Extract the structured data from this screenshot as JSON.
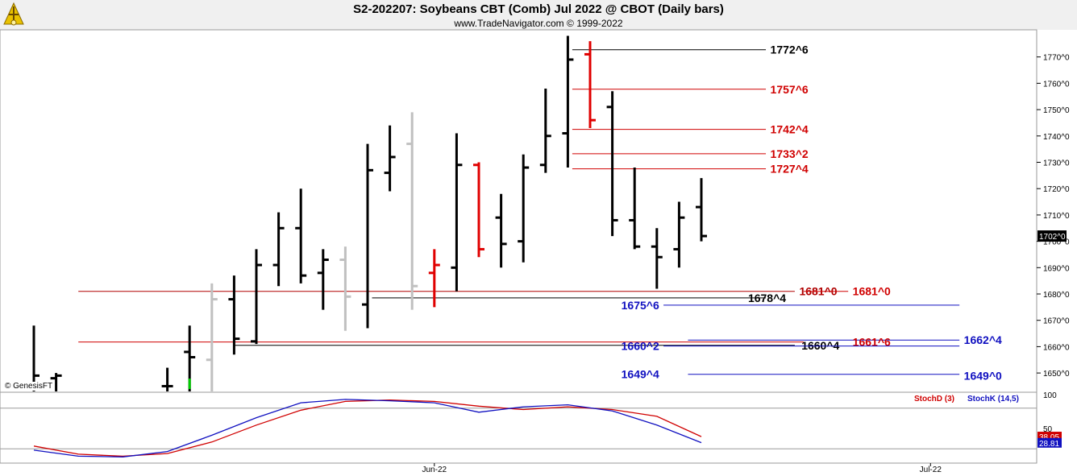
{
  "header": {
    "title": "S2-202207:  Soybeans CBT (Comb) Jul 2022 @ CBOT  (Daily bars)",
    "subtitle": "www.TradeNavigator.com © 1999-2022",
    "copyright": "© GenesisFT"
  },
  "chart_data": [
    {
      "type": "ohlc",
      "title": "S2-202207:  Soybeans CBT (Comb) Jul 2022 @ CBOT  (Daily bars)",
      "y_range": [
        1643,
        1780
      ],
      "y_ticks": [
        1650,
        1660,
        1670,
        1680,
        1690,
        1700,
        1710,
        1720,
        1730,
        1740,
        1750,
        1760,
        1770
      ],
      "y_tick_labels": [
        "1650^0",
        "1660^0",
        "1670^0",
        "1680^0",
        "1690^0",
        "1700^0",
        "1710^0",
        "1720^0",
        "1730^0",
        "1740^0",
        "1750^0",
        "1760^0",
        "1770^0"
      ],
      "last_price_label": "1702^0",
      "last_price": 1702,
      "x_labels": [
        {
          "label": "Jun-22",
          "bar_pos": 18
        },
        {
          "label": "Jul-22",
          "bar_pos": 40.3
        }
      ],
      "bars": [
        {
          "i": 0,
          "o": 1645,
          "h": 1668,
          "l": 1643,
          "c": 1649,
          "color": "black"
        },
        {
          "i": 1,
          "o": 1648,
          "h": 1650,
          "l": 1643,
          "c": 1649,
          "color": "black"
        },
        {
          "i": 6,
          "o": 1645,
          "h": 1652,
          "l": 1643,
          "c": 1645,
          "color": "black"
        },
        {
          "i": 7,
          "o": 1658,
          "h": 1668,
          "l": 1643,
          "c": 1656,
          "color": "black"
        },
        {
          "i": 8,
          "o": 1655,
          "h": 1684,
          "l": 1643,
          "c": 1678,
          "color": "gray"
        },
        {
          "i": 9,
          "o": 1678,
          "h": 1687,
          "l": 1657,
          "c": 1663,
          "color": "black"
        },
        {
          "i": 10,
          "o": 1662,
          "h": 1697,
          "l": 1661,
          "c": 1691,
          "color": "black"
        },
        {
          "i": 11,
          "o": 1691,
          "h": 1711,
          "l": 1683,
          "c": 1705,
          "color": "black"
        },
        {
          "i": 12,
          "o": 1705,
          "h": 1720,
          "l": 1684,
          "c": 1687,
          "color": "black"
        },
        {
          "i": 13,
          "o": 1688,
          "h": 1697,
          "l": 1674,
          "c": 1693,
          "color": "black"
        },
        {
          "i": 14,
          "o": 1693,
          "h": 1698,
          "l": 1666,
          "c": 1679,
          "color": "gray"
        },
        {
          "i": 15,
          "o": 1676,
          "h": 1737,
          "l": 1667,
          "c": 1727,
          "color": "black"
        },
        {
          "i": 16,
          "o": 1726,
          "h": 1744,
          "l": 1719,
          "c": 1732,
          "color": "black"
        },
        {
          "i": 17,
          "o": 1737,
          "h": 1749,
          "l": 1674,
          "c": 1683,
          "color": "gray"
        },
        {
          "i": 18,
          "o": 1688,
          "h": 1697,
          "l": 1675,
          "c": 1691,
          "color": "red"
        },
        {
          "i": 19,
          "o": 1690,
          "h": 1741,
          "l": 1681,
          "c": 1729,
          "color": "black"
        },
        {
          "i": 20,
          "o": 1729,
          "h": 1730,
          "l": 1694,
          "c": 1697,
          "color": "red"
        },
        {
          "i": 21,
          "o": 1709,
          "h": 1718,
          "l": 1690,
          "c": 1699,
          "color": "black"
        },
        {
          "i": 22,
          "o": 1700,
          "h": 1733,
          "l": 1692,
          "c": 1728,
          "color": "black"
        },
        {
          "i": 23,
          "o": 1729,
          "h": 1758,
          "l": 1726,
          "c": 1740,
          "color": "black"
        },
        {
          "i": 24,
          "o": 1741,
          "h": 1778,
          "l": 1728,
          "c": 1769,
          "color": "black"
        },
        {
          "i": 25,
          "o": 1771,
          "h": 1776,
          "l": 1743,
          "c": 1746,
          "color": "red"
        },
        {
          "i": 26,
          "o": 1751,
          "h": 1757,
          "l": 1702,
          "c": 1708,
          "color": "black"
        },
        {
          "i": 27,
          "o": 1708,
          "h": 1728,
          "l": 1697,
          "c": 1698,
          "color": "black"
        },
        {
          "i": 28,
          "o": 1698,
          "h": 1705,
          "l": 1682,
          "c": 1694,
          "color": "black"
        },
        {
          "i": 29,
          "o": 1697,
          "h": 1715,
          "l": 1690,
          "c": 1709,
          "color": "black"
        },
        {
          "i": 30,
          "o": 1713,
          "h": 1724,
          "l": 1700,
          "c": 1702,
          "color": "black"
        }
      ],
      "levels": [
        {
          "value": 1772.75,
          "label": "1772^6",
          "color": "#000000",
          "bar_from": 24.2,
          "bar_to": 32.9,
          "label_bar": 33.1
        },
        {
          "value": 1757.75,
          "label": "1757^6",
          "color": "#d00000",
          "bar_from": 24.2,
          "bar_to": 32.9,
          "label_bar": 33.1
        },
        {
          "value": 1742.5,
          "label": "1742^4",
          "color": "#d00000",
          "bar_from": 24.2,
          "bar_to": 32.9,
          "label_bar": 33.1
        },
        {
          "value": 1733.25,
          "label": "1733^2",
          "color": "#d00000",
          "bar_from": 24.2,
          "bar_to": 32.9,
          "label_bar": 33.1
        },
        {
          "value": 1727.5,
          "label": "1727^4",
          "color": "#d00000",
          "bar_from": 24.2,
          "bar_to": 32.9,
          "label_bar": 33.1
        },
        {
          "value": 1681.0,
          "label": "1681^0",
          "color": "#b00000",
          "bar_from": 2.0,
          "bar_to": 34.2,
          "label_bar": 34.4
        },
        {
          "value": 1681.0,
          "label": "1681^0",
          "color": "#d00000",
          "bar_from": 34.6,
          "bar_to": 36.6,
          "label_bar": 36.8
        },
        {
          "value": 1678.5,
          "label": "1678^4",
          "color": "#000000",
          "bar_from": 15.2,
          "bar_to": 32.9,
          "label_bar": 32.1
        },
        {
          "value": 1675.75,
          "label": "1675^6",
          "color": "#1010c0",
          "bar_from": 28.3,
          "bar_to": 41.6,
          "label_bar": 26.4
        },
        {
          "value": 1662.5,
          "label": "1662^4",
          "color": "#1010c0",
          "bar_from": 29.4,
          "bar_to": 41.6,
          "label_bar": 41.8
        },
        {
          "value": 1661.75,
          "label": "1661^6",
          "color": "#d00000",
          "bar_from": 2.0,
          "bar_to": 34.6,
          "label_bar": 36.8
        },
        {
          "value": 1660.5,
          "label": "1660^4",
          "color": "#000000",
          "bar_from": 9.0,
          "bar_to": 34.2,
          "label_bar": 34.5
        },
        {
          "value": 1660.25,
          "label": "1660^2",
          "color": "#1010c0",
          "bar_from": 28.3,
          "bar_to": 41.6,
          "label_bar": 26.4
        },
        {
          "value": 1649.5,
          "label": "1649^4",
          "color": "#1010c0",
          "bar_from": 29.4,
          "bar_to": 41.6,
          "label_bar": 26.4
        },
        {
          "value": 1649.0,
          "label": "1649^0",
          "color": "#1010c0",
          "bar_from": 41.6,
          "bar_to": 41.6,
          "label_bar": 41.8
        }
      ]
    },
    {
      "type": "line",
      "title": "",
      "y_range": [
        0,
        100
      ],
      "y_tick_labels": [
        {
          "value": 100,
          "label": "100"
        },
        {
          "value": 50,
          "label": "50"
        }
      ],
      "reference_lines": [
        80,
        20
      ],
      "value_labels": [
        {
          "value": 38.05,
          "label": "38.05",
          "color": "#d00000"
        },
        {
          "value": 28.81,
          "label": "28.81",
          "color": "#1010c0"
        }
      ],
      "series": [
        {
          "name": "StochD (3)",
          "color": "#d00000",
          "x": [
            0,
            2,
            4,
            6,
            8,
            10,
            12,
            14,
            16,
            18,
            20,
            22,
            24,
            26,
            28,
            30
          ],
          "values": [
            24,
            12,
            9,
            13,
            30,
            55,
            77,
            90,
            92,
            90,
            83,
            78,
            82,
            78,
            68,
            38
          ]
        },
        {
          "name": "StochK (14,5)",
          "color": "#1010c0",
          "x": [
            0,
            2,
            4,
            6,
            8,
            10,
            12,
            14,
            16,
            18,
            20,
            22,
            24,
            26,
            28,
            30
          ],
          "values": [
            18,
            9,
            8,
            16,
            40,
            66,
            88,
            93,
            91,
            88,
            74,
            82,
            85,
            76,
            55,
            29
          ]
        }
      ]
    }
  ]
}
